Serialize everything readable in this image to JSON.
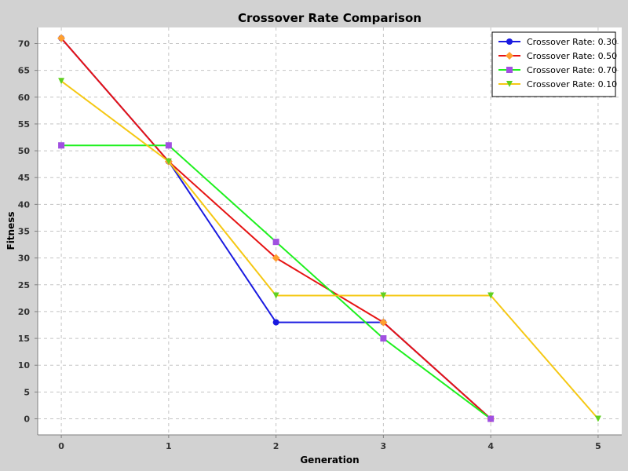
{
  "chart_data": {
    "type": "line",
    "title": "Crossover Rate Comparison",
    "xlabel": "Generation",
    "ylabel": "Fitness",
    "xlim": [
      -0.22,
      5.22
    ],
    "ylim": [
      -3,
      73
    ],
    "x_ticks": [
      0,
      1,
      2,
      3,
      4,
      5
    ],
    "y_ticks": [
      0,
      5,
      10,
      15,
      20,
      25,
      30,
      35,
      40,
      45,
      50,
      55,
      60,
      65,
      70
    ],
    "grid": true,
    "legend_position": "top-right",
    "series": [
      {
        "name": "Crossover Rate: 0.30",
        "color": "#1a1ae0",
        "marker": "circle",
        "x": [
          0,
          1,
          2,
          3,
          4
        ],
        "values": [
          71,
          48,
          18,
          18,
          0
        ]
      },
      {
        "name": "Crossover Rate: 0.50",
        "color": "#e61414",
        "marker": "diamond",
        "marker_color": "#ffa030",
        "x": [
          0,
          1,
          2,
          3,
          4
        ],
        "values": [
          71,
          48,
          30,
          18,
          0
        ]
      },
      {
        "name": "Crossover Rate: 0.70",
        "color": "#1ef01e",
        "marker": "square",
        "marker_color": "#a050e0",
        "x": [
          0,
          1,
          2,
          3,
          4
        ],
        "values": [
          51,
          51,
          33,
          15,
          0
        ]
      },
      {
        "name": "Crossover Rate: 0.10",
        "color": "#f5c814",
        "marker": "triangle-down",
        "marker_color": "#60d020",
        "x": [
          0,
          1,
          2,
          3,
          4,
          5
        ],
        "values": [
          63,
          48,
          23,
          23,
          23,
          0
        ]
      }
    ]
  }
}
